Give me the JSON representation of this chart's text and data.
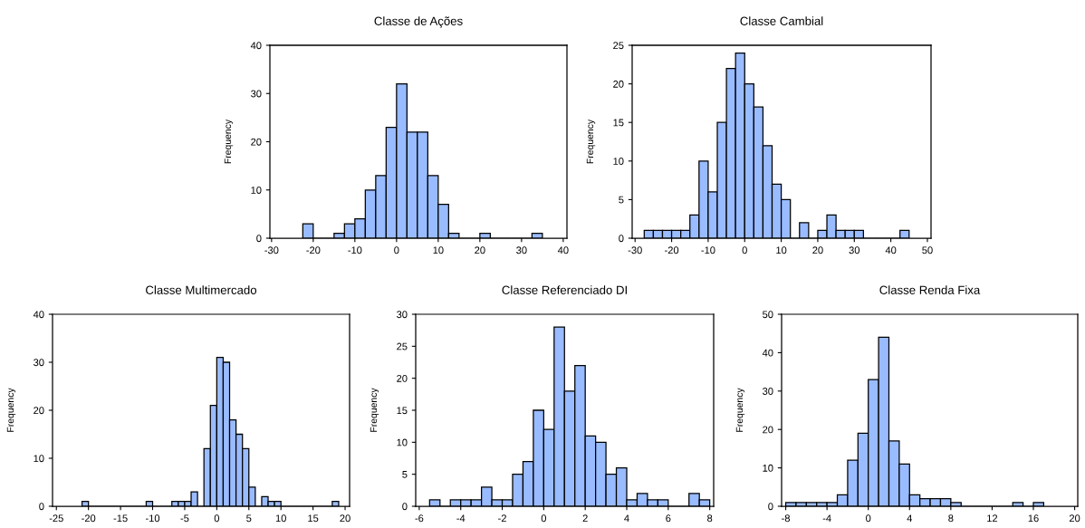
{
  "chart_data": [
    {
      "type": "histogram",
      "title": "Classe de Ações",
      "ylabel": "Frequency",
      "color": "#99bbff",
      "bins": [
        -22.5,
        -20,
        -17.5,
        -15,
        -12.5,
        -10,
        -7.5,
        -5,
        -2.5,
        0,
        2.5,
        5,
        7.5,
        10,
        12.5,
        15,
        17.5,
        20,
        22.5,
        25,
        27.5,
        30,
        32.5,
        35
      ],
      "values": [
        3,
        0,
        0,
        1,
        3,
        4,
        10,
        13,
        23,
        32,
        22,
        22,
        13,
        7,
        1,
        0,
        0,
        1,
        0,
        0,
        0,
        0,
        1
      ],
      "xlim": [
        -30.4,
        40.9
      ],
      "xticks": [
        -30,
        -20,
        -10,
        0,
        10,
        20,
        30,
        40
      ],
      "ylim": [
        0,
        40
      ],
      "yticks": [
        0,
        10,
        20,
        30,
        40
      ],
      "grid": false
    },
    {
      "type": "histogram",
      "title": "Classe Cambial",
      "ylabel": "Frequency",
      "color": "#99bbff",
      "bins": [
        -27.5,
        -25,
        -22.5,
        -20,
        -17.5,
        -15,
        -12.5,
        -10,
        -7.5,
        -5,
        -2.5,
        0,
        2.5,
        5,
        7.5,
        10,
        12.5,
        15,
        17.5,
        20,
        22.5,
        25,
        27.5,
        30,
        32.5,
        35,
        37.5,
        40,
        42.5,
        45
      ],
      "values": [
        1,
        1,
        1,
        1,
        1,
        3,
        10,
        6,
        15,
        22,
        24,
        20,
        17,
        12,
        7,
        5,
        0,
        2,
        0,
        1,
        3,
        1,
        1,
        1,
        0,
        0,
        0,
        0,
        1
      ],
      "xlim": [
        -30.8,
        51
      ],
      "xticks": [
        -30,
        -20,
        -10,
        0,
        10,
        20,
        30,
        40,
        50
      ],
      "ylim": [
        0,
        25
      ],
      "yticks": [
        0,
        5,
        10,
        15,
        20,
        25
      ],
      "grid": false
    },
    {
      "type": "histogram",
      "title": "Classe Multimercado",
      "ylabel": "Frequency",
      "color": "#99bbff",
      "bins": [
        -21,
        -20,
        -19,
        -18,
        -17,
        -16,
        -15,
        -14,
        -13,
        -12,
        -11,
        -10,
        -9,
        -8,
        -7,
        -6,
        -5,
        -4,
        -3,
        -2,
        -1,
        0,
        1,
        2,
        3,
        4,
        5,
        6,
        7,
        8,
        9,
        10,
        11,
        12,
        13,
        14,
        15,
        16,
        17,
        18,
        19
      ],
      "values": [
        1,
        0,
        0,
        0,
        0,
        0,
        0,
        0,
        0,
        0,
        1,
        0,
        0,
        0,
        1,
        1,
        1,
        3,
        0,
        12,
        21,
        31,
        30,
        18,
        15,
        12,
        4,
        0,
        2,
        1,
        1,
        0,
        0,
        0,
        0,
        0,
        0,
        0,
        0,
        1
      ],
      "xlim": [
        -25.6,
        20.7
      ],
      "xticks": [
        -25,
        -20,
        -15,
        -10,
        -5,
        0,
        5,
        10,
        15,
        20
      ],
      "ylim": [
        0,
        40
      ],
      "yticks": [
        0,
        10,
        20,
        30,
        40
      ],
      "grid": false
    },
    {
      "type": "histogram",
      "title": "Classe Referenciado DI",
      "ylabel": "Frequency",
      "color": "#99bbff",
      "bins": [
        -5.5,
        -5,
        -4.5,
        -4,
        -3.5,
        -3,
        -2.5,
        -2,
        -1.5,
        -1,
        -0.5,
        0,
        0.5,
        1,
        1.5,
        2,
        2.5,
        3,
        3.5,
        4,
        4.5,
        5,
        5.5,
        6,
        6.5,
        7,
        7.5,
        8
      ],
      "values": [
        1,
        0,
        1,
        1,
        1,
        3,
        1,
        1,
        5,
        7,
        15,
        12,
        28,
        18,
        22,
        11,
        10,
        5,
        6,
        1,
        2,
        1,
        1,
        0,
        0,
        2,
        1
      ],
      "xlim": [
        -6.17,
        8.19
      ],
      "xticks": [
        -6,
        -4,
        -2,
        0,
        2,
        4,
        6,
        8
      ],
      "ylim": [
        0,
        30
      ],
      "yticks": [
        0,
        5,
        10,
        15,
        20,
        25,
        30
      ],
      "grid": false
    },
    {
      "type": "histogram",
      "title": "Classe Renda Fixa",
      "ylabel": "Frequency",
      "color": "#99bbff",
      "bins": [
        -8,
        -7,
        -6,
        -5,
        -4,
        -3,
        -2,
        -1,
        0,
        1,
        2,
        3,
        4,
        5,
        6,
        7,
        8,
        9,
        10,
        11,
        12,
        13,
        14,
        15,
        16,
        17
      ],
      "values": [
        1,
        1,
        1,
        1,
        1,
        3,
        12,
        19,
        33,
        44,
        17,
        11,
        3,
        2,
        2,
        2,
        1,
        0,
        0,
        0,
        0,
        0,
        1,
        0,
        1
      ],
      "xlim": [
        -8.4,
        20.3
      ],
      "xticks": [
        -8,
        -4,
        0,
        4,
        8,
        12,
        16,
        20
      ],
      "ylim": [
        0,
        50
      ],
      "yticks": [
        0,
        10,
        20,
        30,
        40,
        50
      ],
      "grid": false
    }
  ]
}
